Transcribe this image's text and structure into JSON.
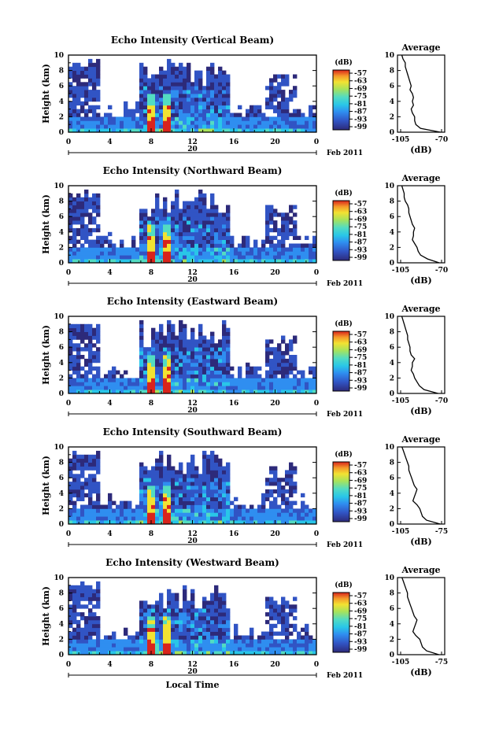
{
  "chart_data": [
    {
      "type": "heatmap",
      "title": "Echo Intensity (Vertical Beam)",
      "ylabel": "Height (km)",
      "ylim": [
        0,
        10
      ],
      "x_ticks": [
        "0",
        "4",
        "8",
        "12",
        "16",
        "20",
        "0"
      ],
      "y_ticks": [
        "0",
        "2",
        "4",
        "6",
        "8",
        "10"
      ],
      "date_label": "20",
      "date_suffix": "Feb 2011",
      "colorbar_unit": "(dB)",
      "colorbar_ticks": [
        "-57",
        "-63",
        "-69",
        "-75",
        "-81",
        "-87",
        "-93",
        "-99"
      ],
      "profile": {
        "title": "Average",
        "xlabel": "(dB)",
        "x_ticks": [
          "-105",
          "-70"
        ],
        "y_ticks": [
          "0",
          "2",
          "4",
          "6",
          "8",
          "10"
        ],
        "heights": [
          0,
          0.5,
          1,
          1.5,
          2,
          2.5,
          3,
          3.5,
          4,
          4.5,
          5,
          5.5,
          6,
          6.5,
          7,
          7.5,
          8,
          8.5,
          9,
          9.5,
          10
        ],
        "values": [
          -71,
          -88,
          -92,
          -93,
          -93,
          -95,
          -96,
          -94,
          -95,
          -94,
          -95,
          -97,
          -96,
          -97,
          -98,
          -99,
          -100,
          -101,
          -101,
          -103,
          -104
        ]
      }
    },
    {
      "type": "heatmap",
      "title": "Echo Intensity (Northward Beam)",
      "ylabel": "Height (km)",
      "ylim": [
        0,
        10
      ],
      "x_ticks": [
        "0",
        "4",
        "8",
        "12",
        "16",
        "20",
        "0"
      ],
      "y_ticks": [
        "0",
        "2",
        "4",
        "6",
        "8",
        "10"
      ],
      "date_label": "20",
      "date_suffix": "Feb 2011",
      "colorbar_unit": "(dB)",
      "colorbar_ticks": [
        "-57",
        "-63",
        "-69",
        "-75",
        "-81",
        "-87",
        "-93",
        "-99"
      ],
      "profile": {
        "title": "Average",
        "xlabel": "(dB)",
        "x_ticks": [
          "-105",
          "-70"
        ],
        "y_ticks": [
          "0",
          "2",
          "4",
          "6",
          "8",
          "10"
        ],
        "heights": [
          0,
          0.5,
          1,
          1.5,
          2,
          2.5,
          3,
          3.5,
          4,
          4.5,
          5,
          5.5,
          6,
          6.5,
          7,
          7.5,
          8,
          8.5,
          9,
          9.5,
          10
        ],
        "values": [
          -72,
          -82,
          -88,
          -90,
          -91,
          -93,
          -95,
          -94,
          -94,
          -93,
          -95,
          -96,
          -97,
          -98,
          -98,
          -99,
          -101,
          -102,
          -102,
          -103,
          -104
        ]
      }
    },
    {
      "type": "heatmap",
      "title": "Echo Intensity (Eastward Beam)",
      "ylabel": "Height (km)",
      "ylim": [
        0,
        10
      ],
      "x_ticks": [
        "0",
        "4",
        "8",
        "12",
        "16",
        "20",
        "0"
      ],
      "y_ticks": [
        "0",
        "2",
        "4",
        "6",
        "8",
        "10"
      ],
      "date_label": "20",
      "date_suffix": "Feb 2011",
      "colorbar_unit": "(dB)",
      "colorbar_ticks": [
        "-57",
        "-63",
        "-69",
        "-75",
        "-81",
        "-87",
        "-93",
        "-99"
      ],
      "profile": {
        "title": "Average",
        "xlabel": "(dB)",
        "x_ticks": [
          "-105",
          "-70"
        ],
        "y_ticks": [
          "0",
          "2",
          "4",
          "6",
          "8",
          "10"
        ],
        "heights": [
          0,
          0.5,
          1,
          1.5,
          2,
          2.5,
          3,
          3.5,
          4,
          4.5,
          5,
          5.5,
          6,
          6.5,
          7,
          7.5,
          8,
          8.5,
          9,
          9.5,
          10
        ],
        "values": [
          -73,
          -85,
          -89,
          -91,
          -93,
          -94,
          -96,
          -95,
          -95,
          -93,
          -96,
          -97,
          -97,
          -98,
          -99,
          -99,
          -100,
          -101,
          -102,
          -103,
          -104
        ]
      }
    },
    {
      "type": "heatmap",
      "title": "Echo Intensity (Southward Beam)",
      "ylabel": "Height (km)",
      "ylim": [
        0,
        10
      ],
      "x_ticks": [
        "0",
        "4",
        "8",
        "12",
        "16",
        "20",
        "0"
      ],
      "y_ticks": [
        "0",
        "2",
        "4",
        "6",
        "8",
        "10"
      ],
      "date_label": "20",
      "date_suffix": "Feb 2011",
      "colorbar_unit": "(dB)",
      "colorbar_ticks": [
        "-57",
        "-63",
        "-69",
        "-75",
        "-81",
        "-87",
        "-93",
        "-99"
      ],
      "profile": {
        "title": "Average",
        "xlabel": "(dB)",
        "x_ticks": [
          "-105",
          "-75"
        ],
        "y_ticks": [
          "0",
          "2",
          "4",
          "6",
          "8",
          "10"
        ],
        "heights": [
          0,
          0.5,
          1,
          1.5,
          2,
          2.5,
          3,
          3.5,
          4,
          4.5,
          5,
          5.5,
          6,
          6.5,
          7,
          7.5,
          8,
          8.5,
          9,
          9.5,
          10
        ],
        "values": [
          -76,
          -86,
          -89,
          -90,
          -91,
          -93,
          -96,
          -95,
          -94,
          -93,
          -95,
          -96,
          -97,
          -98,
          -99,
          -99,
          -100,
          -101,
          -102,
          -103,
          -104
        ]
      }
    },
    {
      "type": "heatmap",
      "title": "Echo Intensity (Westward Beam)",
      "ylabel": "Height (km)",
      "xlabel": "Local Time",
      "ylim": [
        0,
        10
      ],
      "x_ticks": [
        "0",
        "4",
        "8",
        "12",
        "16",
        "20",
        "0"
      ],
      "y_ticks": [
        "0",
        "2",
        "4",
        "6",
        "8",
        "10"
      ],
      "date_label": "20",
      "date_suffix": "Feb 2011",
      "colorbar_unit": "(dB)",
      "colorbar_ticks": [
        "-57",
        "-63",
        "-69",
        "-75",
        "-81",
        "-87",
        "-93",
        "-99"
      ],
      "profile": {
        "title": "Average",
        "xlabel": "(dB)",
        "x_ticks": [
          "-105",
          "-75"
        ],
        "y_ticks": [
          "0",
          "2",
          "4",
          "6",
          "8",
          "10"
        ],
        "heights": [
          0,
          0.5,
          1,
          1.5,
          2,
          2.5,
          3,
          3.5,
          4,
          4.5,
          5,
          5.5,
          6,
          6.5,
          7,
          7.5,
          8,
          8.5,
          9,
          9.5,
          10
        ],
        "values": [
          -77,
          -86,
          -89,
          -90,
          -91,
          -94,
          -96,
          -95,
          -94,
          -93,
          -95,
          -96,
          -97,
          -98,
          -99,
          -100,
          -100,
          -101,
          -102,
          -103,
          -104
        ]
      }
    }
  ]
}
